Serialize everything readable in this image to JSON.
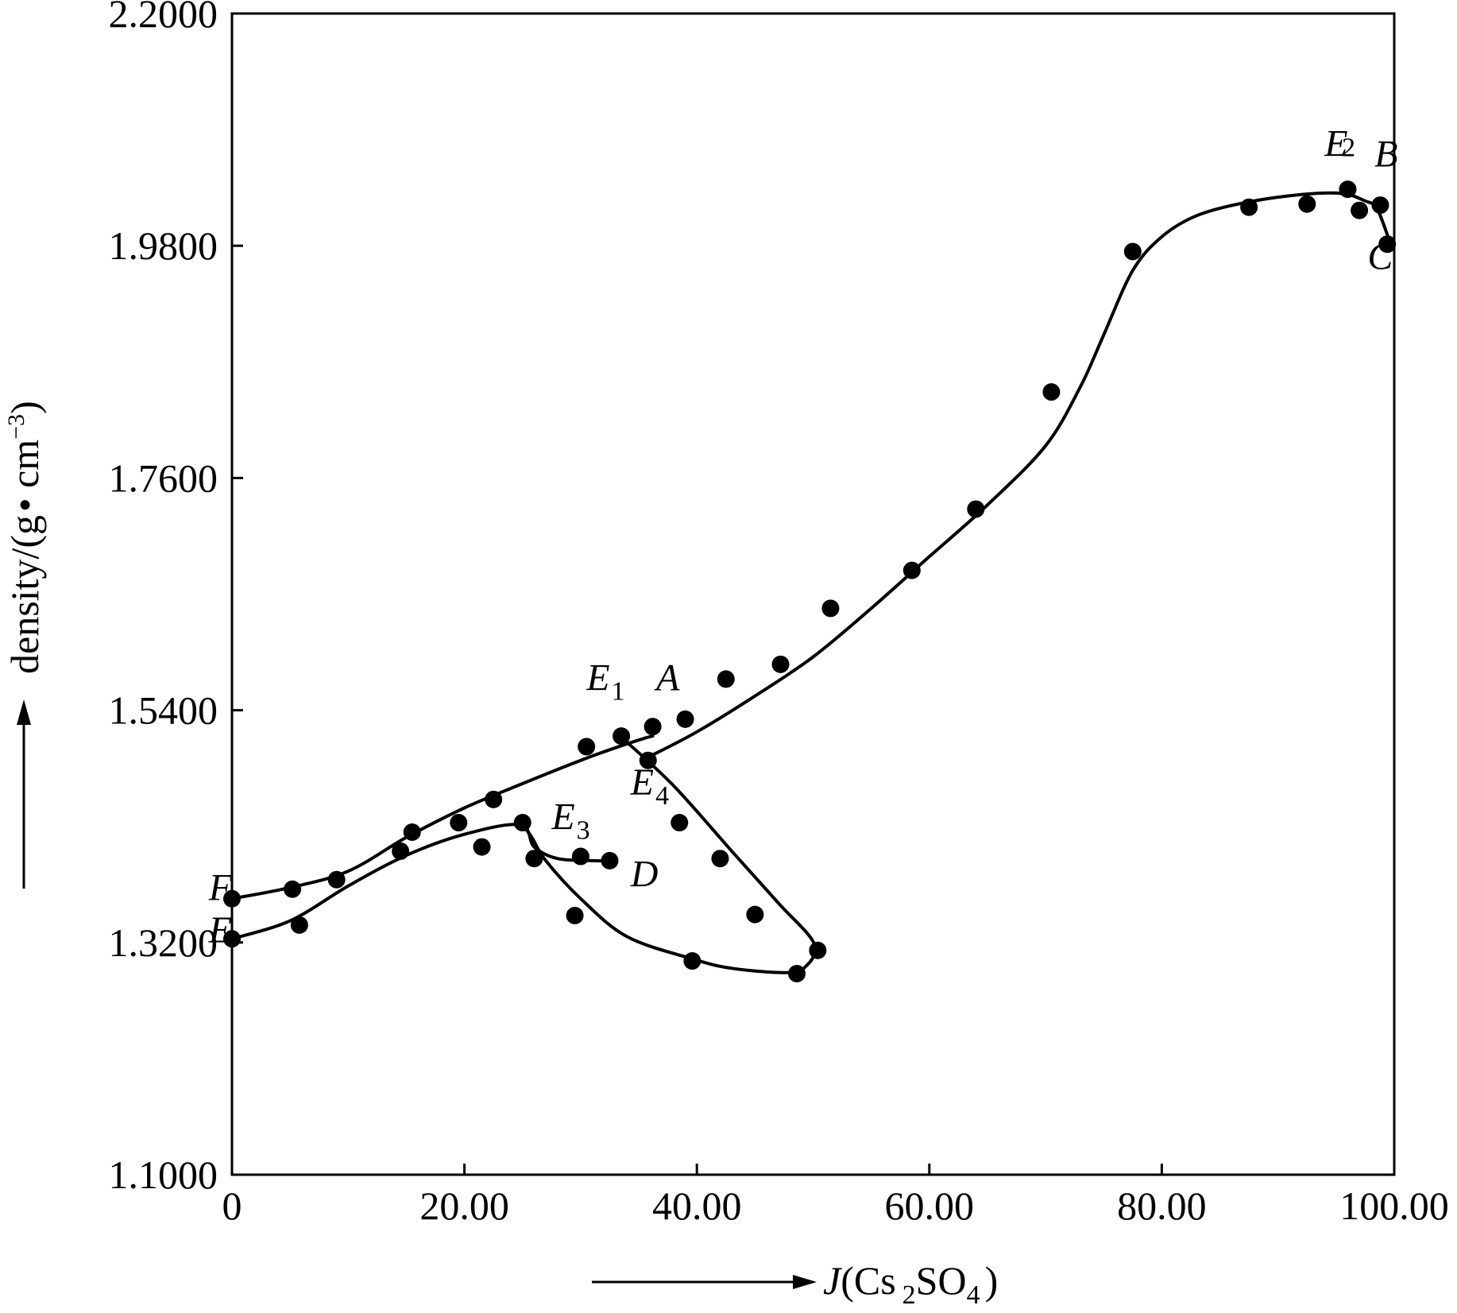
{
  "chart_data": {
    "type": "scatter",
    "title": "",
    "xlabel": "J(Cs2SO4)",
    "ylabel": "density/(g·cm⁻³)",
    "xlabel_parts": {
      "main": "J",
      "open": "(Cs",
      "sub1": "2",
      "mid": "SO",
      "sub2": "4",
      "close": ")"
    },
    "ylabel_parts": {
      "main": "density/(g",
      "dot": "•",
      "unit": " cm",
      "sup": "−3",
      "close": ")"
    },
    "xlim": [
      0,
      100
    ],
    "ylim": [
      1.1,
      2.2
    ],
    "x_ticks": [
      {
        "value": 0,
        "label": "0"
      },
      {
        "value": 20,
        "label": "20.00"
      },
      {
        "value": 40,
        "label": "40.00"
      },
      {
        "value": 60,
        "label": "60.00"
      },
      {
        "value": 80,
        "label": "80.00"
      },
      {
        "value": 100,
        "label": "100.00"
      }
    ],
    "y_ticks": [
      {
        "value": 1.1,
        "label": "1.1000"
      },
      {
        "value": 1.32,
        "label": "1.3200"
      },
      {
        "value": 1.54,
        "label": "1.5400"
      },
      {
        "value": 1.76,
        "label": "1.7600"
      },
      {
        "value": 1.98,
        "label": "1.9800"
      },
      {
        "value": 2.2,
        "label": "2.2000"
      }
    ],
    "grid": false,
    "points": [
      [
        0.0,
        1.3615
      ],
      [
        0.0,
        1.3235
      ],
      [
        5.2,
        1.3705
      ],
      [
        5.8,
        1.3365
      ],
      [
        9.0,
        1.3795
      ],
      [
        14.5,
        1.4065
      ],
      [
        15.5,
        1.4245
      ],
      [
        19.5,
        1.4335
      ],
      [
        21.5,
        1.4105
      ],
      [
        22.5,
        1.4555
      ],
      [
        25.0,
        1.4335
      ],
      [
        26.0,
        1.3995
      ],
      [
        29.5,
        1.3455
      ],
      [
        30.0,
        1.4015
      ],
      [
        30.5,
        1.5055
      ],
      [
        32.5,
        1.3975
      ],
      [
        33.5,
        1.5155
      ],
      [
        35.8,
        1.4925
      ],
      [
        36.2,
        1.5245
      ],
      [
        38.5,
        1.4335
      ],
      [
        39.0,
        1.5315
      ],
      [
        39.6,
        1.3025
      ],
      [
        42.0,
        1.3995
      ],
      [
        42.5,
        1.5695
      ],
      [
        45.0,
        1.3465
      ],
      [
        47.2,
        1.5835
      ],
      [
        48.6,
        1.2905
      ],
      [
        50.4,
        1.3125
      ],
      [
        51.5,
        1.6365
      ],
      [
        58.5,
        1.6725
      ],
      [
        64.0,
        1.7305
      ],
      [
        70.5,
        1.8415
      ],
      [
        77.5,
        1.9745
      ],
      [
        87.5,
        2.0165
      ],
      [
        92.5,
        2.0195
      ],
      [
        96.0,
        2.0335
      ],
      [
        97.0,
        2.0135
      ],
      [
        98.8,
        2.0185
      ],
      [
        99.4,
        1.9815
      ]
    ],
    "curves": [
      {
        "points": [
          [
            0,
            1.3615
          ],
          [
            5,
            1.372
          ],
          [
            10,
            1.3875
          ],
          [
            15,
            1.4195
          ],
          [
            20,
            1.4475
          ],
          [
            25,
            1.4705
          ],
          [
            30,
            1.4925
          ],
          [
            33,
            1.5045
          ],
          [
            35.5,
            1.5135
          ],
          [
            36.2,
            1.5155
          ]
        ]
      },
      {
        "points": [
          [
            0,
            1.3235
          ],
          [
            5,
            1.3405
          ],
          [
            10,
            1.3735
          ],
          [
            15,
            1.4025
          ],
          [
            20,
            1.4225
          ],
          [
            24.8,
            1.4315
          ],
          [
            26,
            1.4105
          ],
          [
            28,
            1.3995
          ],
          [
            31,
            1.3975
          ],
          [
            32.5,
            1.3975
          ]
        ]
      },
      {
        "points": [
          [
            33.5,
            1.5145
          ],
          [
            38,
            1.4685
          ],
          [
            43,
            1.4065
          ],
          [
            47,
            1.3575
          ],
          [
            50.1,
            1.3185
          ],
          [
            49.2,
            1.2955
          ],
          [
            47.5,
            1.2915
          ],
          [
            43,
            1.2955
          ],
          [
            39.6,
            1.3045
          ],
          [
            34,
            1.3255
          ],
          [
            30,
            1.3615
          ],
          [
            27,
            1.3975
          ],
          [
            25.8,
            1.4195
          ],
          [
            25,
            1.4315
          ]
        ]
      },
      {
        "points": [
          [
            35.8,
            1.4955
          ],
          [
            40,
            1.5195
          ],
          [
            45,
            1.5535
          ],
          [
            50,
            1.5905
          ],
          [
            55,
            1.6365
          ],
          [
            60,
            1.6855
          ],
          [
            65,
            1.7345
          ],
          [
            70,
            1.7905
          ],
          [
            73,
            1.8465
          ],
          [
            75,
            1.8955
          ],
          [
            77.5,
            1.9565
          ],
          [
            80,
            1.9885
          ],
          [
            83,
            2.0085
          ],
          [
            87,
            2.0205
          ],
          [
            92,
            2.0285
          ],
          [
            95.5,
            2.0295
          ],
          [
            97.5,
            2.0225
          ],
          [
            98.5,
            2.0155
          ],
          [
            99.5,
            1.9875
          ]
        ]
      }
    ],
    "annotations": [
      {
        "main": "A",
        "sub": "",
        "x": 36.5,
        "y": 1.559
      },
      {
        "main": "E",
        "sub": "1",
        "x": 30.5,
        "y": 1.559
      },
      {
        "main": "E",
        "sub": "4",
        "x": 34.3,
        "y": 1.46
      },
      {
        "main": "E",
        "sub": "3",
        "x": 27.5,
        "y": 1.427
      },
      {
        "main": "D",
        "sub": "",
        "x": 34.3,
        "y": 1.373
      },
      {
        "main": "F",
        "sub": "",
        "x": -2.0,
        "y": 1.36
      },
      {
        "main": "E",
        "sub": "",
        "x": -2.0,
        "y": 1.32
      },
      {
        "main": "E",
        "sub": "",
        "x": 94.0,
        "y": 2.065
      },
      {
        "main": "",
        "sub": "2",
        "x": 95.5,
        "y": 2.065
      },
      {
        "main": "B",
        "sub": "",
        "x": 98.3,
        "y": 2.055
      },
      {
        "main": "C",
        "sub": "",
        "x": 97.7,
        "y": 1.958
      }
    ]
  }
}
